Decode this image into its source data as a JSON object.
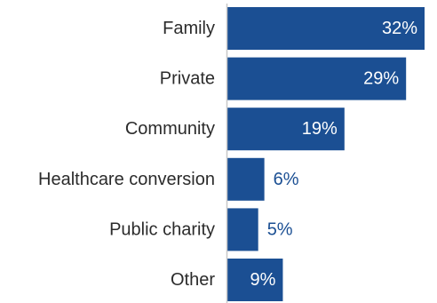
{
  "chart_data": {
    "type": "bar",
    "orientation": "horizontal",
    "categories": [
      "Family",
      "Private",
      "Community",
      "Healthcare conversion",
      "Public charity",
      "Other"
    ],
    "values": [
      32,
      29,
      19,
      6,
      5,
      9
    ],
    "value_labels": [
      "32%",
      "29%",
      "19%",
      "6%",
      "5%",
      "9%"
    ],
    "unit": "%",
    "title": "",
    "xlabel": "",
    "ylabel": "",
    "xlim": [
      0,
      32
    ],
    "grid": false,
    "legend": "none",
    "colors": {
      "bar": "#1b4f93",
      "label_inside": "#ffffff",
      "label_outside": "#1b4f93",
      "category_text": "#2b2b2b",
      "axis": "#c8c8c8"
    }
  }
}
